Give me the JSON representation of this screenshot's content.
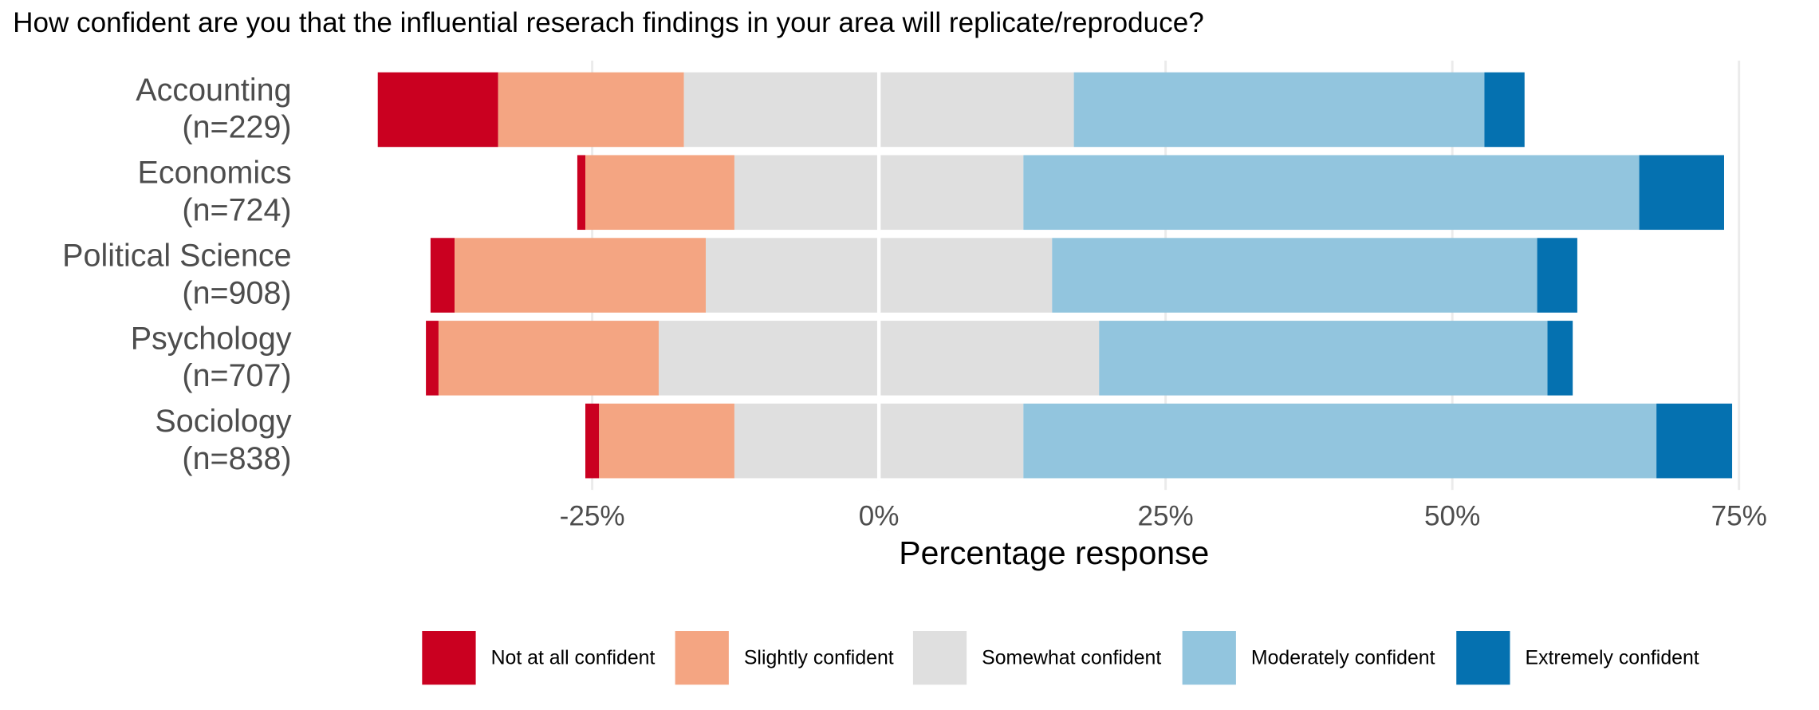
{
  "chart_data": {
    "type": "diverging_bar",
    "title": "How confident are you that the influential reserach findings in your area will replicate/reproduce?",
    "x_label": "Percentage response",
    "categories": [
      "Accounting",
      "Economics",
      "Political Science",
      "Psychology",
      "Sociology"
    ],
    "category_sublabels": [
      "(n=229)",
      "(n=724)",
      "(n=908)",
      "(n=707)",
      "(n=838)"
    ],
    "series": [
      {
        "name": "Not at all confident",
        "color": "#ca0020",
        "values": [
          10.5,
          0.7,
          2.1,
          1.1,
          1.2
        ]
      },
      {
        "name": "Slightly confident",
        "color": "#f4a582",
        "values": [
          16.2,
          13.0,
          21.9,
          19.2,
          11.8
        ]
      },
      {
        "name": "Somewhat confident",
        "color": "#dfdfdf",
        "values": [
          34.0,
          25.2,
          30.2,
          38.4,
          25.2
        ]
      },
      {
        "name": "Moderately confident",
        "color": "#92c5de",
        "values": [
          35.8,
          53.7,
          42.3,
          39.1,
          55.2
        ]
      },
      {
        "name": "Extremely confident",
        "color": "#0571b0",
        "values": [
          3.5,
          7.4,
          3.5,
          2.2,
          6.6
        ]
      }
    ],
    "xlim": [
      -50,
      77.5
    ],
    "xticks": [
      {
        "value": -25,
        "label": "-25%"
      },
      {
        "value": 0,
        "label": "0%"
      },
      {
        "value": 25,
        "label": "25%"
      },
      {
        "value": 50,
        "label": "50%"
      },
      {
        "value": 75,
        "label": "75%"
      }
    ],
    "grid": true,
    "legend_position": "bottom"
  }
}
